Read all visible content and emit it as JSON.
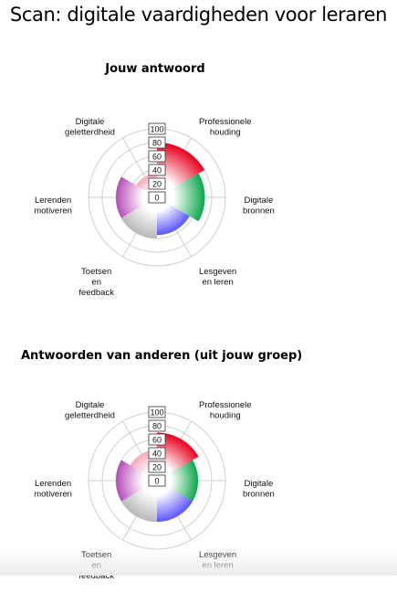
{
  "page": {
    "title": "Scan: digitale vaardigheden voor leraren"
  },
  "colors": {
    "professionele_houding": "#e8001c",
    "digitale_bronnen": "#0ba84a",
    "lesgeven_en_leren": "#5a55ff",
    "toetsen_en_feedback": "#b8b8b8",
    "lerenden_motiveren": "#b74bb8",
    "digitale_geletterdheid": "#f2aab9"
  },
  "chart_data": [
    {
      "type": "polar-area",
      "title": "Jouw antwoord",
      "categories": [
        "Professionele houding",
        "Digitale bronnen",
        "Lesgeven en leren",
        "Toetsen en feedback",
        "Lerenden motiveren",
        "Digitale geletterdheid"
      ],
      "category_lines": [
        [
          "Professionele",
          "houding"
        ],
        [
          "Digitale",
          "bronnen"
        ],
        [
          "Lesgeven",
          "en leren"
        ],
        [
          "Toetsen",
          "en",
          "feedback"
        ],
        [
          "Lerenden",
          "motiveren"
        ],
        [
          "Digitale",
          "geletterdheid"
        ]
      ],
      "values": [
        80,
        70,
        55,
        60,
        60,
        35
      ],
      "rlim": [
        0,
        100
      ],
      "ticks": [
        "0",
        "20",
        "40",
        "60",
        "80",
        "100"
      ],
      "grid": true,
      "legend": "none"
    },
    {
      "type": "polar-area",
      "title": "Antwoorden van anderen (uit jouw groep)",
      "categories": [
        "Professionele houding",
        "Digitale bronnen",
        "Lesgeven en leren",
        "Toetsen en feedback",
        "Lerenden motiveren",
        "Digitale geletterdheid"
      ],
      "category_lines": [
        [
          "Professionele",
          "houding"
        ],
        [
          "Digitale",
          "bronnen"
        ],
        [
          "Lesgeven",
          "en leren"
        ],
        [
          "Toetsen",
          "en",
          "feedback"
        ],
        [
          "Lerenden",
          "motiveren"
        ],
        [
          "Digitale",
          "geletterdheid"
        ]
      ],
      "values": [
        70,
        60,
        60,
        60,
        60,
        45
      ],
      "rlim": [
        0,
        100
      ],
      "ticks": [
        "0",
        "20",
        "40",
        "60",
        "80",
        "100"
      ],
      "grid": true,
      "legend": "none"
    }
  ]
}
